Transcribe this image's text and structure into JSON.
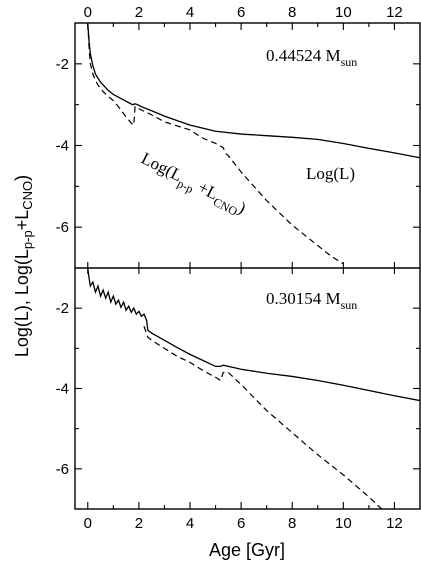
{
  "chart_data": {
    "type": "line",
    "xlabel": "Age [Gyr]",
    "ylabel_parts": {
      "a": "Log(L), Log(L",
      "sub1": "p-p",
      "b": "+L",
      "sub2": "CNO",
      "c": ")"
    },
    "xlim": [
      -0.5,
      13
    ],
    "x_ticks": [
      0,
      2,
      4,
      6,
      8,
      10,
      12
    ],
    "panels": [
      {
        "mass_label": "0.44524 M",
        "mass_sub": "sun",
        "ylim": [
          -7,
          -1
        ],
        "y_ticks": [
          -2,
          -4,
          -6
        ],
        "annotations": [
          {
            "id": "logL",
            "parts": [
              {
                "t": "Log(L)"
              }
            ]
          },
          {
            "id": "logLpp",
            "parts": [
              {
                "t": "Log(L"
              },
              {
                "t": "p-p",
                "sub": true
              },
              {
                "t": " +L"
              },
              {
                "t": "CNO",
                "sub": true
              },
              {
                "t": ")"
              }
            ]
          }
        ],
        "series": [
          {
            "style": "solid",
            "x": [
              0.0,
              0.05,
              0.1,
              0.2,
              0.3,
              0.5,
              0.8,
              1.0,
              1.3,
              1.6,
              1.75,
              1.85,
              1.95,
              2.1,
              2.5,
              3.0,
              4.0,
              5.0,
              6.0,
              7.0,
              8.0,
              9.0,
              10.0,
              11.0,
              12.0,
              13.0
            ],
            "y": [
              -1.0,
              -1.45,
              -1.75,
              -2.05,
              -2.25,
              -2.45,
              -2.65,
              -2.75,
              -2.85,
              -2.95,
              -3.0,
              -2.98,
              -3.0,
              -3.05,
              -3.15,
              -3.28,
              -3.5,
              -3.65,
              -3.72,
              -3.76,
              -3.8,
              -3.85,
              -3.95,
              -4.07,
              -4.18,
              -4.3
            ]
          },
          {
            "style": "dashed",
            "x": [
              0.0,
              0.05,
              0.1,
              0.2,
              0.3,
              0.4,
              0.5,
              0.6,
              0.8,
              1.0,
              1.2,
              1.5,
              1.7,
              1.8,
              1.85,
              2.0,
              2.5,
              3.0,
              3.5,
              4.0,
              4.5,
              5.0,
              5.3,
              5.4,
              5.5,
              6.0,
              7.0,
              8.0,
              9.0,
              9.5,
              10.0
            ],
            "y": [
              -1.0,
              -1.6,
              -2.0,
              -2.25,
              -2.4,
              -2.52,
              -2.6,
              -2.68,
              -2.8,
              -2.9,
              -3.05,
              -3.3,
              -3.45,
              -3.5,
              -3.05,
              -3.1,
              -3.25,
              -3.42,
              -3.52,
              -3.62,
              -3.82,
              -3.95,
              -4.05,
              -4.2,
              -4.25,
              -4.65,
              -5.35,
              -5.95,
              -6.45,
              -6.7,
              -6.9
            ]
          }
        ]
      },
      {
        "mass_label": "0.30154 M",
        "mass_sub": "sun",
        "ylim": [
          -7,
          -1
        ],
        "y_ticks": [
          -2,
          -4,
          -6
        ],
        "annotations": [],
        "series": [
          {
            "style": "solid",
            "x": [
              0.0,
              0.05,
              0.1,
              0.2,
              0.3,
              0.4,
              0.5,
              0.6,
              0.7,
              0.8,
              0.9,
              1.0,
              1.1,
              1.2,
              1.3,
              1.4,
              1.5,
              1.6,
              1.7,
              1.8,
              1.9,
              2.0,
              2.1,
              2.2,
              2.3,
              2.35,
              2.5,
              3.0,
              3.5,
              4.0,
              4.5,
              5.0,
              5.2,
              5.3,
              5.5,
              6.0,
              7.0,
              8.0,
              9.0,
              10.0,
              11.0,
              12.0,
              13.0
            ],
            "y": [
              -1.0,
              -1.25,
              -1.45,
              -1.35,
              -1.6,
              -1.45,
              -1.7,
              -1.55,
              -1.75,
              -1.6,
              -1.85,
              -1.7,
              -1.9,
              -1.8,
              -1.98,
              -1.85,
              -2.05,
              -1.95,
              -2.1,
              -2.0,
              -2.15,
              -2.08,
              -2.2,
              -2.15,
              -2.3,
              -2.55,
              -2.62,
              -2.8,
              -2.98,
              -3.15,
              -3.3,
              -3.45,
              -3.45,
              -3.42,
              -3.45,
              -3.52,
              -3.62,
              -3.7,
              -3.8,
              -3.92,
              -4.05,
              -4.18,
              -4.3
            ]
          },
          {
            "style": "dashed",
            "x": [
              2.2,
              2.35,
              2.5,
              3.0,
              3.5,
              4.0,
              4.5,
              5.0,
              5.2,
              5.3,
              5.5,
              6.0,
              7.0,
              8.0,
              9.0,
              10.0,
              11.0,
              11.5,
              12.0
            ],
            "y": [
              -2.45,
              -2.72,
              -2.8,
              -3.0,
              -3.2,
              -3.35,
              -3.55,
              -3.72,
              -3.8,
              -3.6,
              -3.6,
              -3.9,
              -4.55,
              -5.1,
              -5.65,
              -6.15,
              -6.7,
              -7.0,
              -7.3
            ]
          }
        ]
      }
    ]
  }
}
